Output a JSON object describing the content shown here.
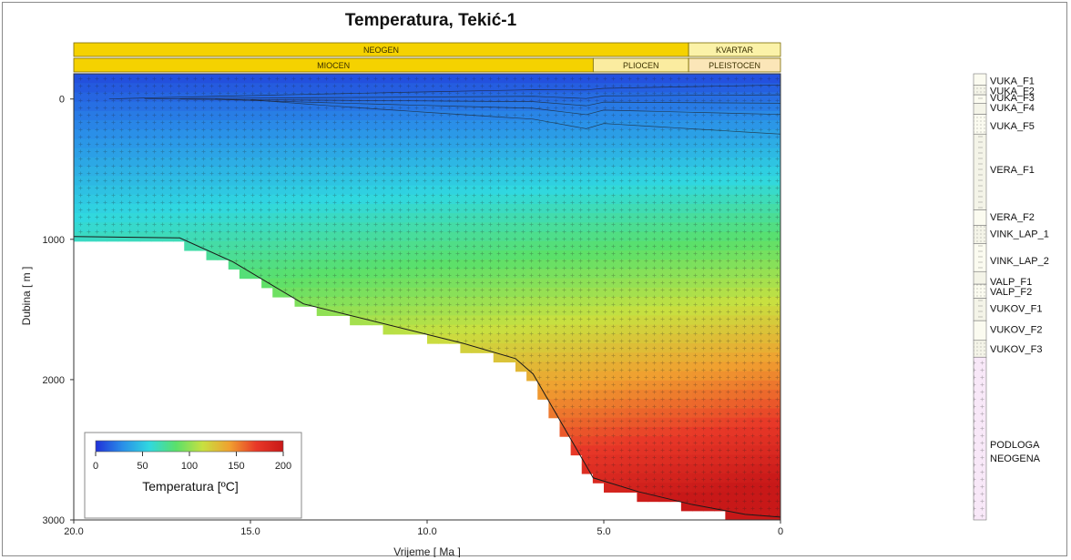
{
  "chart_data": {
    "type": "heatmap",
    "title": "Temperatura, Tekić-1",
    "xlabel": "Vrijeme [ Ma ]",
    "ylabel": "Dubina [ m ]",
    "xlim": [
      20,
      0
    ],
    "ylim": [
      3000,
      -180
    ],
    "x_ticks": [
      "20.0",
      "15.0",
      "10.0",
      "5.0",
      "0"
    ],
    "x_tick_values": [
      20,
      15,
      10,
      5,
      0
    ],
    "y_ticks": [
      "0",
      "1000",
      "2000",
      "3000"
    ],
    "y_tick_values": [
      0,
      1000,
      2000,
      3000
    ],
    "eras_top": [
      {
        "label": "NEOGEN",
        "start": 20,
        "end": 2.6
      },
      {
        "label": "KVARTAR",
        "start": 2.6,
        "end": 0
      }
    ],
    "eras_bottom": [
      {
        "label": "MIOCEN",
        "start": 20,
        "end": 5.3
      },
      {
        "label": "PLIOCEN",
        "start": 5.3,
        "end": 2.6
      },
      {
        "label": "PLEISTOCEN",
        "start": 2.6,
        "end": 0
      }
    ],
    "layers": [
      {
        "name": "VUKA_F1",
        "depth": -130
      },
      {
        "name": "VUKA_F2",
        "depth": -60
      },
      {
        "name": "VUKA_F3",
        "depth": -10
      },
      {
        "name": "VUKA_F4",
        "depth": 60
      },
      {
        "name": "VUKA_F5",
        "depth": 190
      },
      {
        "name": "VERA_F1",
        "depth": 500
      },
      {
        "name": "VERA_F2",
        "depth": 840
      },
      {
        "name": "VINK_LAP_1",
        "depth": 960
      },
      {
        "name": "VINK_LAP_2",
        "depth": 1150
      },
      {
        "name": "VALP_F1",
        "depth": 1300
      },
      {
        "name": "VALP_F2",
        "depth": 1370
      },
      {
        "name": "VUKOV_F1",
        "depth": 1490
      },
      {
        "name": "VUKOV_F2",
        "depth": 1640
      },
      {
        "name": "VUKOV_F3",
        "depth": 1780
      },
      {
        "name": "PODLOGA\nNEOGENA",
        "depth": 2500
      }
    ],
    "horizon_boundaries": [
      -180,
      -100,
      -30,
      30,
      110,
      250,
      790,
      900,
      1030,
      1230,
      1320,
      1420,
      1580,
      1720,
      1840
    ],
    "basement_depth": {
      "x": [
        20,
        17,
        15.5,
        13.5,
        9,
        7.5,
        7,
        5.3,
        4,
        2.5,
        1,
        0
      ],
      "y": [
        980,
        990,
        1160,
        1460,
        1740,
        1850,
        1960,
        2700,
        2800,
        2890,
        2960,
        2980
      ]
    },
    "colorbar": {
      "title": "Temperatura [ºC]",
      "ticks": [
        "0",
        "50",
        "100",
        "150",
        "200"
      ],
      "tick_values": [
        0,
        50,
        100,
        150,
        200
      ],
      "range": [
        0,
        200
      ],
      "colors": [
        "#2030d8",
        "#2a8ee8",
        "#30d8e0",
        "#5ae06a",
        "#c8e040",
        "#f0a030",
        "#e83828",
        "#c81818"
      ]
    }
  }
}
